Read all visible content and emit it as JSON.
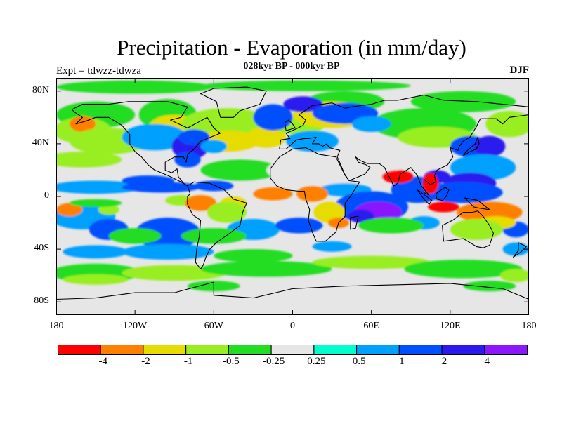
{
  "header": {
    "title": "Precipitation - Evaporation (in mm/day)",
    "subtitle": "028kyr BP - 000kyr BP",
    "experiment": "Expt = tdwzz-tdwza",
    "season": "DJF"
  },
  "axes": {
    "lat_labels": [
      "80N",
      "40N",
      "0",
      "40S",
      "80S"
    ],
    "lat_values": [
      80,
      40,
      0,
      -40,
      -80
    ],
    "lon_labels": [
      "180",
      "120W",
      "60W",
      "0",
      "60E",
      "120E",
      "180"
    ],
    "lon_values": [
      -180,
      -120,
      -60,
      0,
      60,
      120,
      180
    ]
  },
  "colorbar": {
    "colors": [
      "#ff0000",
      "#ff8000",
      "#e6dc00",
      "#99ee22",
      "#22dd22",
      "#e6e6e6",
      "#00ffcc",
      "#00a0ff",
      "#0050ff",
      "#2a1aee",
      "#8a17ff"
    ],
    "labels": [
      "-4",
      "-2",
      "-1",
      "-0.5",
      "-0.25",
      "0.25",
      "0.5",
      "1",
      "2",
      "4"
    ]
  },
  "chart_data": {
    "type": "heatmap",
    "title": "Precipitation - Evaporation (in mm/day)",
    "subtitle": "028kyr BP - 000kyr BP",
    "xlabel": "",
    "ylabel": "",
    "xlim": [
      -180,
      180
    ],
    "ylim": [
      -90,
      90
    ],
    "levels": [
      -4,
      -2,
      -1,
      -0.5,
      -0.25,
      0.25,
      0.5,
      1,
      2,
      4
    ],
    "background_class": 5,
    "regions": [
      {
        "lon": -120,
        "lat": 83,
        "rx": 60,
        "ry": 5,
        "cls": 4
      },
      {
        "lon": 10,
        "lat": 84,
        "rx": 80,
        "ry": 4,
        "cls": 4
      },
      {
        "lon": 40,
        "lat": 72,
        "rx": 30,
        "ry": 8,
        "cls": 4
      },
      {
        "lon": 130,
        "lat": 72,
        "rx": 40,
        "ry": 8,
        "cls": 4
      },
      {
        "lon": -150,
        "lat": 62,
        "rx": 30,
        "ry": 10,
        "cls": 4
      },
      {
        "lon": -95,
        "lat": 62,
        "rx": 22,
        "ry": 12,
        "cls": 4
      },
      {
        "lon": -160,
        "lat": 50,
        "rx": 22,
        "ry": 10,
        "cls": 3
      },
      {
        "lon": -160,
        "lat": 55,
        "rx": 10,
        "ry": 6,
        "cls": 1
      },
      {
        "lon": -140,
        "lat": 42,
        "rx": 30,
        "ry": 10,
        "cls": 3
      },
      {
        "lon": -90,
        "lat": 52,
        "rx": 20,
        "ry": 10,
        "cls": 2
      },
      {
        "lon": -50,
        "lat": 55,
        "rx": 35,
        "ry": 12,
        "cls": 3
      },
      {
        "lon": -50,
        "lat": 42,
        "rx": 25,
        "ry": 8,
        "cls": 2
      },
      {
        "lon": -20,
        "lat": 45,
        "rx": 15,
        "ry": 8,
        "cls": 2
      },
      {
        "lon": 5,
        "lat": 55,
        "rx": 20,
        "ry": 8,
        "cls": 3
      },
      {
        "lon": 30,
        "lat": 62,
        "rx": 30,
        "ry": 10,
        "cls": 2
      },
      {
        "lon": 100,
        "lat": 55,
        "rx": 40,
        "ry": 12,
        "cls": 4
      },
      {
        "lon": 110,
        "lat": 45,
        "rx": 30,
        "ry": 8,
        "cls": 3
      },
      {
        "lon": 165,
        "lat": 55,
        "rx": 18,
        "ry": 10,
        "cls": 3
      },
      {
        "lon": -160,
        "lat": 28,
        "rx": 30,
        "ry": 6,
        "cls": 3
      },
      {
        "lon": -40,
        "lat": 20,
        "rx": 30,
        "ry": 8,
        "cls": 4
      },
      {
        "lon": 30,
        "lat": 20,
        "rx": 50,
        "ry": 12,
        "cls": 5
      },
      {
        "lon": -105,
        "lat": 45,
        "rx": 25,
        "ry": 10,
        "cls": 7
      },
      {
        "lon": -78,
        "lat": 38,
        "rx": 14,
        "ry": 10,
        "cls": 9
      },
      {
        "lon": -75,
        "lat": 45,
        "rx": 12,
        "ry": 6,
        "cls": 8
      },
      {
        "lon": -60,
        "lat": 38,
        "rx": 10,
        "ry": 5,
        "cls": 7
      },
      {
        "lon": -80,
        "lat": 28,
        "rx": 10,
        "ry": 6,
        "cls": 8
      },
      {
        "lon": -15,
        "lat": 60,
        "rx": 15,
        "ry": 10,
        "cls": 8
      },
      {
        "lon": 8,
        "lat": 70,
        "rx": 15,
        "ry": 6,
        "cls": 9
      },
      {
        "lon": 15,
        "lat": 42,
        "rx": 20,
        "ry": 8,
        "cls": 7
      },
      {
        "lon": 40,
        "lat": 63,
        "rx": 25,
        "ry": 8,
        "cls": 8
      },
      {
        "lon": 60,
        "lat": 55,
        "rx": 15,
        "ry": 6,
        "cls": 7
      },
      {
        "lon": 135,
        "lat": 38,
        "rx": 15,
        "ry": 8,
        "cls": 8
      },
      {
        "lon": 150,
        "lat": 38,
        "rx": 12,
        "ry": 8,
        "cls": 9
      },
      {
        "lon": 145,
        "lat": 22,
        "rx": 25,
        "ry": 10,
        "cls": 7
      },
      {
        "lon": 135,
        "lat": 10,
        "rx": 20,
        "ry": 8,
        "cls": 9
      },
      {
        "lon": -150,
        "lat": 7,
        "rx": 35,
        "ry": 5,
        "cls": 7
      },
      {
        "lon": -110,
        "lat": 12,
        "rx": 20,
        "ry": 4,
        "cls": 8
      },
      {
        "lon": -100,
        "lat": 7,
        "rx": 30,
        "ry": 4,
        "cls": 8
      },
      {
        "lon": -60,
        "lat": 8,
        "rx": 15,
        "ry": 4,
        "cls": 8
      },
      {
        "lon": 40,
        "lat": 5,
        "rx": 20,
        "ry": 5,
        "cls": 7
      },
      {
        "lon": 60,
        "lat": -8,
        "rx": 28,
        "ry": 12,
        "cls": 8
      },
      {
        "lon": 65,
        "lat": -12,
        "rx": 18,
        "ry": 8,
        "cls": 10
      },
      {
        "lon": 52,
        "lat": -15,
        "rx": 10,
        "ry": 5,
        "cls": 9
      },
      {
        "lon": 95,
        "lat": 5,
        "rx": 20,
        "ry": 10,
        "cls": 8
      },
      {
        "lon": 110,
        "lat": 15,
        "rx": 10,
        "ry": 5,
        "cls": 9
      },
      {
        "lon": 130,
        "lat": 3,
        "rx": 30,
        "ry": 8,
        "cls": 8
      },
      {
        "lon": -160,
        "lat": -15,
        "rx": 25,
        "ry": 10,
        "cls": 7
      },
      {
        "lon": -140,
        "lat": -25,
        "rx": 15,
        "ry": 8,
        "cls": 8
      },
      {
        "lon": -95,
        "lat": -28,
        "rx": 25,
        "ry": 12,
        "cls": 8
      },
      {
        "lon": -95,
        "lat": -42,
        "rx": 35,
        "ry": 6,
        "cls": 7
      },
      {
        "lon": -150,
        "lat": -42,
        "rx": 25,
        "ry": 5,
        "cls": 7
      },
      {
        "lon": -30,
        "lat": -25,
        "rx": 20,
        "ry": 8,
        "cls": 7
      },
      {
        "lon": 5,
        "lat": -22,
        "rx": 18,
        "ry": 6,
        "cls": 8
      },
      {
        "lon": 30,
        "lat": -38,
        "rx": 15,
        "ry": 4,
        "cls": 7
      },
      {
        "lon": 100,
        "lat": -20,
        "rx": 12,
        "ry": 5,
        "cls": 7
      },
      {
        "lon": 170,
        "lat": -25,
        "rx": 10,
        "ry": 6,
        "cls": 8
      },
      {
        "lon": 170,
        "lat": -40,
        "rx": 10,
        "ry": 5,
        "cls": 7
      },
      {
        "lon": -170,
        "lat": -10,
        "rx": 10,
        "ry": 5,
        "cls": 1
      },
      {
        "lon": -140,
        "lat": -10,
        "rx": 8,
        "ry": 4,
        "cls": 3
      },
      {
        "lon": -85,
        "lat": -3,
        "rx": 12,
        "ry": 4,
        "cls": 3
      },
      {
        "lon": -70,
        "lat": -5,
        "rx": 12,
        "ry": 6,
        "cls": 1
      },
      {
        "lon": -45,
        "lat": -5,
        "rx": 10,
        "ry": 5,
        "cls": 2
      },
      {
        "lon": -15,
        "lat": 2,
        "rx": 15,
        "ry": 5,
        "cls": 1
      },
      {
        "lon": 15,
        "lat": 2,
        "rx": 12,
        "ry": 6,
        "cls": 1
      },
      {
        "lon": 28,
        "lat": -12,
        "rx": 12,
        "ry": 8,
        "cls": 2
      },
      {
        "lon": 35,
        "lat": -20,
        "rx": 8,
        "ry": 4,
        "cls": 1
      },
      {
        "lon": -150,
        "lat": -5,
        "rx": 20,
        "ry": 3,
        "cls": 4
      },
      {
        "lon": 75,
        "lat": -22,
        "rx": 25,
        "ry": 6,
        "cls": 4
      },
      {
        "lon": 150,
        "lat": -12,
        "rx": 25,
        "ry": 8,
        "cls": 1
      },
      {
        "lon": 155,
        "lat": -20,
        "rx": 15,
        "ry": 5,
        "cls": 2
      },
      {
        "lon": 140,
        "lat": -25,
        "rx": 20,
        "ry": 8,
        "cls": 3
      },
      {
        "lon": -50,
        "lat": -12,
        "rx": 15,
        "ry": 8,
        "cls": 3
      },
      {
        "lon": -120,
        "lat": -30,
        "rx": 20,
        "ry": 6,
        "cls": 4
      },
      {
        "lon": -60,
        "lat": -30,
        "rx": 25,
        "ry": 6,
        "cls": 4
      },
      {
        "lon": -30,
        "lat": -45,
        "rx": 30,
        "ry": 5,
        "cls": 4
      },
      {
        "lon": 105,
        "lat": 10,
        "rx": 6,
        "ry": 8,
        "cls": 0
      },
      {
        "lon": 115,
        "lat": -8,
        "rx": 12,
        "ry": 4,
        "cls": 0
      },
      {
        "lon": 80,
        "lat": 15,
        "rx": 12,
        "ry": 5,
        "cls": 0
      },
      {
        "lon": -150,
        "lat": -58,
        "rx": 35,
        "ry": 7,
        "cls": 4
      },
      {
        "lon": -150,
        "lat": -63,
        "rx": 25,
        "ry": 4,
        "cls": 3
      },
      {
        "lon": -90,
        "lat": -58,
        "rx": 40,
        "ry": 6,
        "cls": 3
      },
      {
        "lon": -20,
        "lat": -55,
        "rx": 50,
        "ry": 6,
        "cls": 4
      },
      {
        "lon": 60,
        "lat": -50,
        "rx": 45,
        "ry": 5,
        "cls": 3
      },
      {
        "lon": 130,
        "lat": -55,
        "rx": 45,
        "ry": 7,
        "cls": 4
      },
      {
        "lon": 170,
        "lat": -60,
        "rx": 12,
        "ry": 5,
        "cls": 3
      },
      {
        "lon": -60,
        "lat": -68,
        "rx": 20,
        "ry": 4,
        "cls": 4
      },
      {
        "lon": 150,
        "lat": -68,
        "rx": 20,
        "ry": 4,
        "cls": 4
      }
    ]
  }
}
